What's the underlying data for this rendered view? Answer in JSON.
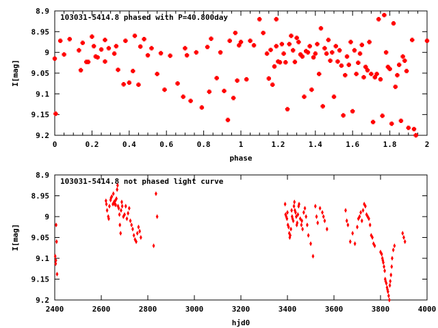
{
  "chart_data": [
    {
      "type": "scatter",
      "title": "103031-5414.8 phased with P=40.800day",
      "xlabel": "phase",
      "ylabel": "I[mag]",
      "xlim": [
        0,
        2
      ],
      "ylim": [
        8.9,
        9.2
      ],
      "y_inverted": true,
      "grid": false,
      "marker_color": "#ff0000",
      "marker": "filled-square",
      "x_ticks": [
        "0",
        "0.2",
        "0.4",
        "0.6",
        "0.8",
        "1",
        "1.2",
        "1.4",
        "1.6",
        "1.8",
        "2"
      ],
      "y_ticks": [
        "8.9",
        "8.95",
        "9",
        "9.05",
        "9.1",
        "9.15",
        "9.2"
      ],
      "series": [
        {
          "x": [
            0.0,
            0.005,
            0.03,
            0.05,
            0.08,
            0.13,
            0.14,
            0.15,
            0.17,
            0.18,
            0.2,
            0.21,
            0.22,
            0.23,
            0.25,
            0.27,
            0.27,
            0.29,
            0.32,
            0.33,
            0.34,
            0.37,
            0.38,
            0.4,
            0.42,
            0.43,
            0.45,
            0.46,
            0.48,
            0.5,
            0.52,
            0.55,
            0.57,
            0.59,
            0.62,
            0.66,
            0.69,
            0.7,
            0.71,
            0.73,
            0.76,
            0.79,
            0.82,
            0.83,
            0.84,
            0.87,
            0.89,
            0.91,
            0.93,
            0.94,
            0.96,
            0.97,
            0.98,
            0.99,
            1.0,
            1.03,
            1.05,
            1.07,
            1.1,
            1.12,
            1.14,
            1.15,
            1.16,
            1.17,
            1.18,
            1.19,
            1.19,
            1.2,
            1.21,
            1.22,
            1.23,
            1.24,
            1.25,
            1.26,
            1.27,
            1.28,
            1.29,
            1.3,
            1.31,
            1.32,
            1.33,
            1.34,
            1.35,
            1.36,
            1.37,
            1.38,
            1.39,
            1.4,
            1.41,
            1.42,
            1.43,
            1.44,
            1.45,
            1.46,
            1.47,
            1.48,
            1.49,
            1.5,
            1.51,
            1.52,
            1.53,
            1.54,
            1.55,
            1.56,
            1.57,
            1.58,
            1.59,
            1.6,
            1.61,
            1.62,
            1.63,
            1.64,
            1.65,
            1.66,
            1.67,
            1.68,
            1.69,
            1.7,
            1.71,
            1.72,
            1.73,
            1.74,
            1.75,
            1.76,
            1.77,
            1.78,
            1.79,
            1.8,
            1.81,
            1.82,
            1.83,
            1.84,
            1.85,
            1.86,
            1.87,
            1.88,
            1.89,
            1.9,
            1.92,
            1.93,
            1.94,
            2.0
          ],
          "y": [
            9.015,
            9.148,
            8.972,
            9.005,
            8.968,
            8.995,
            9.043,
            8.977,
            9.023,
            9.023,
            8.962,
            8.985,
            9.01,
            9.012,
            8.993,
            9.022,
            8.97,
            8.99,
            9.003,
            8.985,
            9.042,
            9.077,
            8.972,
            9.073,
            9.045,
            8.96,
            9.078,
            8.986,
            8.968,
            9.007,
            8.99,
            9.052,
            9.002,
            9.09,
            9.008,
            9.075,
            9.107,
            8.99,
            9.007,
            9.117,
            9.0,
            9.133,
            8.987,
            9.095,
            8.967,
            9.062,
            9.0,
            9.093,
            9.163,
            8.972,
            9.11,
            8.953,
            9.068,
            8.983,
            8.975,
            9.065,
            8.972,
            8.983,
            8.92,
            8.953,
            9.003,
            9.063,
            8.994,
            9.078,
            9.034,
            8.985,
            8.92,
            9.022,
            9.024,
            8.98,
            9.003,
            9.024,
            9.137,
            8.98,
            8.96,
            8.995,
            9.023,
            8.965,
            8.975,
            9.005,
            9.01,
            9.107,
            8.997,
            9.0,
            8.985,
            9.09,
            9.012,
            9.003,
            8.98,
            9.052,
            8.942,
            9.13,
            8.99,
            9.003,
            8.97,
            9.02,
            9.0,
            9.107,
            8.985,
            9.022,
            8.995,
            9.032,
            9.152,
            9.055,
            9.01,
            9.03,
            8.975,
            9.142,
            8.995,
            9.052,
            9.025,
            9.003,
            8.982,
            9.06,
            9.035,
            9.043,
            8.975,
            9.052,
            9.168,
            9.06,
            9.052,
            8.92,
            9.065,
            9.153,
            8.91,
            9.0,
            9.035,
            9.04,
            9.172,
            8.93,
            9.083,
            9.055,
            9.03,
            9.165,
            9.01,
            9.02,
            9.045,
            9.182,
            8.97,
            9.185,
            9.2,
            8.972
          ]
        }
      ]
    },
    {
      "type": "scatter",
      "title": "103031-5414.8 not phased light curve",
      "xlabel": "hjd0",
      "ylabel": "I[mag]",
      "xlim": [
        2400,
        4000
      ],
      "ylim": [
        8.9,
        9.2
      ],
      "y_inverted": true,
      "grid": false,
      "marker_color": "#ff0000",
      "marker": "filled-diamond",
      "x_ticks": [
        "2400",
        "2600",
        "2800",
        "3000",
        "3200",
        "3400",
        "3600",
        "3800",
        "4000"
      ],
      "y_ticks": [
        "8.9",
        "8.95",
        "9",
        "9.05",
        "9.1",
        "9.15",
        "9.2"
      ],
      "series": [
        {
          "x": [
            2402,
            2404,
            2405,
            2406,
            2408,
            2410,
            2620,
            2622,
            2625,
            2630,
            2632,
            2635,
            2640,
            2642,
            2645,
            2650,
            2652,
            2655,
            2658,
            2660,
            2662,
            2665,
            2668,
            2670,
            2672,
            2675,
            2678,
            2680,
            2683,
            2685,
            2688,
            2690,
            2695,
            2700,
            2705,
            2710,
            2715,
            2720,
            2725,
            2730,
            2735,
            2740,
            2745,
            2750,
            2755,
            2760,
            2765,
            2770,
            2825,
            2835,
            2840,
            3390,
            3392,
            3395,
            3398,
            3400,
            3402,
            3405,
            3408,
            3410,
            3412,
            3415,
            3418,
            3420,
            3422,
            3425,
            3428,
            3430,
            3432,
            3435,
            3438,
            3440,
            3442,
            3445,
            3448,
            3450,
            3455,
            3460,
            3462,
            3465,
            3470,
            3475,
            3480,
            3485,
            3490,
            3500,
            3510,
            3520,
            3525,
            3530,
            3540,
            3550,
            3555,
            3560,
            3570,
            3650,
            3655,
            3660,
            3670,
            3680,
            3690,
            3700,
            3705,
            3710,
            3715,
            3720,
            3725,
            3730,
            3735,
            3740,
            3745,
            3750,
            3755,
            3760,
            3765,
            3770,
            3775,
            3800,
            3805,
            3808,
            3810,
            3812,
            3815,
            3818,
            3820,
            3822,
            3825,
            3828,
            3830,
            3832,
            3835,
            3838,
            3840,
            3842,
            3845,
            3848,
            3850,
            3855,
            3860,
            3895,
            3900,
            3905
          ],
          "y": [
            9.095,
            9.113,
            9.105,
            9.02,
            9.06,
            9.138,
            8.962,
            8.97,
            8.985,
            9.0,
            9.005,
            8.975,
            8.96,
            8.955,
            8.952,
            8.97,
            8.945,
            8.965,
            8.97,
            8.962,
            8.972,
            8.957,
            8.935,
            8.925,
            8.975,
            8.98,
            8.995,
            9.02,
            9.04,
            8.985,
            8.965,
            8.975,
            9.0,
            8.995,
            8.975,
            9.005,
            8.992,
            8.98,
            9.01,
            9.02,
            9.03,
            9.045,
            9.055,
            9.06,
            9.04,
            9.025,
            9.035,
            9.05,
            9.07,
            8.945,
            9.0,
            8.97,
            8.995,
            9.0,
            9.005,
            8.99,
            9.02,
            9.025,
            9.04,
            9.05,
            9.045,
            9.03,
            8.985,
            9.0,
            9.005,
            9.01,
            8.975,
            8.965,
            8.985,
            8.99,
            9.0,
            9.02,
            9.015,
            8.995,
            8.975,
            8.97,
            9.005,
            9.02,
            9.01,
            9.03,
            8.99,
            8.98,
            9.0,
            9.02,
            9.045,
            9.065,
            9.095,
            8.975,
            9.0,
            9.015,
            8.98,
            8.99,
            9.0,
            9.01,
            9.03,
            8.985,
            9.01,
            9.02,
            9.06,
            9.04,
            9.065,
            9.025,
            9.005,
            9.0,
            8.99,
            9.01,
            8.985,
            8.97,
            8.975,
            8.995,
            9.0,
            9.005,
            9.02,
            9.045,
            9.05,
            9.065,
            9.07,
            9.085,
            9.09,
            9.1,
            9.105,
            9.11,
            9.12,
            9.13,
            9.15,
            9.155,
            9.16,
            9.17,
            9.175,
            9.18,
            9.19,
            9.2,
            9.165,
            9.155,
            9.14,
            9.12,
            9.1,
            9.08,
            9.07,
            9.04,
            9.05,
            9.06
          ]
        }
      ]
    }
  ]
}
